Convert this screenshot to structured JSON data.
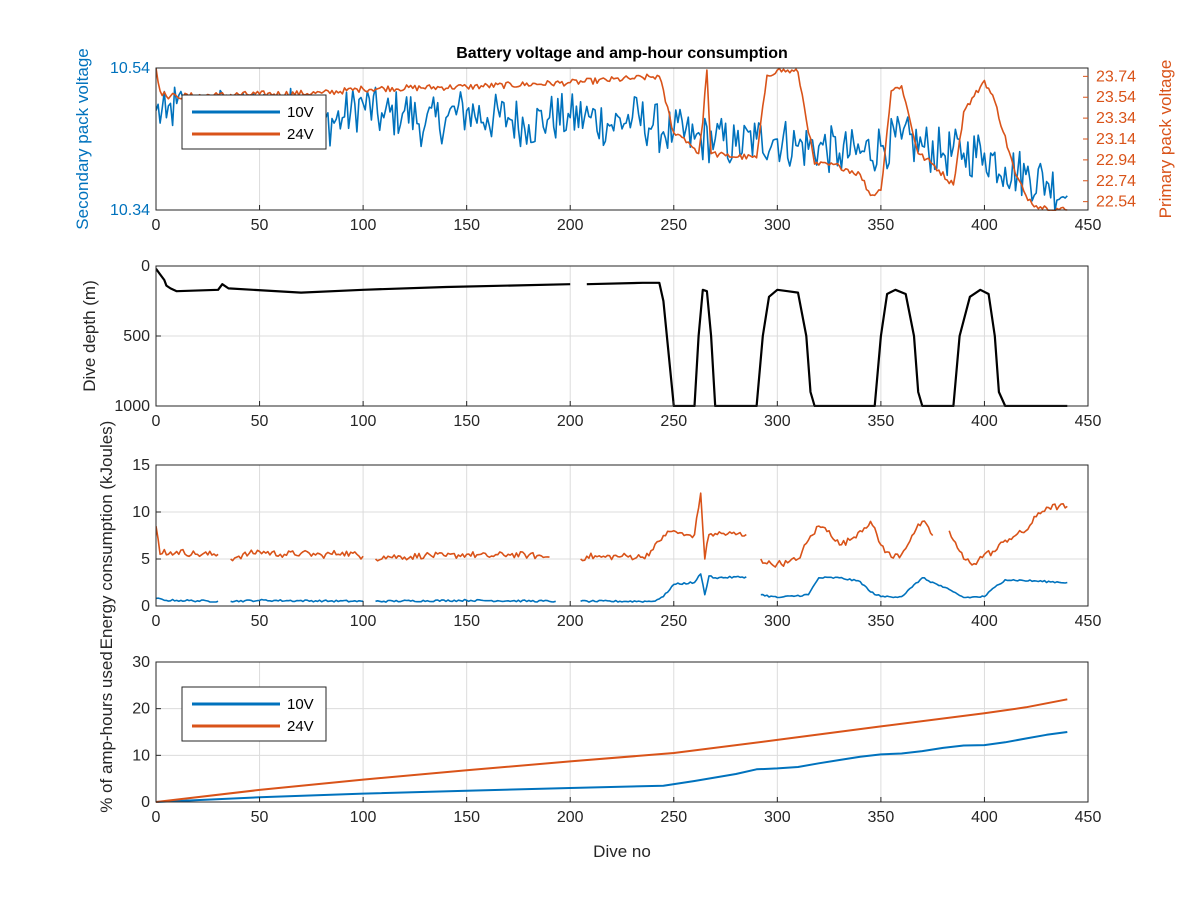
{
  "figure": {
    "background": "#ffffff"
  },
  "chart_data": [
    {
      "id": "voltage",
      "type": "line",
      "title": "Battery voltage and amp-hour consumption",
      "xlabel": "",
      "ylabel": "Secondary pack voltage",
      "y2label": "Primary pack voltage",
      "xlim": [
        0,
        450
      ],
      "xticks": [
        0,
        50,
        100,
        150,
        200,
        250,
        300,
        350,
        400,
        450
      ],
      "ylim": [
        10.34,
        10.54
      ],
      "yticks": [
        10.34,
        10.54
      ],
      "y2lim": [
        22.46,
        23.82
      ],
      "y2ticks": [
        22.54,
        22.74,
        22.94,
        23.14,
        23.34,
        23.54,
        23.74
      ],
      "grid": true,
      "legend": {
        "position": "top-left",
        "entries": [
          "10V",
          "24V"
        ]
      },
      "series": [
        {
          "name": "10V",
          "axis": "left",
          "color": "#0072bd",
          "x": [
            0,
            5,
            10,
            20,
            30,
            40,
            50,
            60,
            70,
            80,
            90,
            100,
            110,
            120,
            130,
            140,
            150,
            160,
            170,
            180,
            190,
            200,
            210,
            220,
            230,
            240,
            245,
            250,
            260,
            270,
            280,
            290,
            300,
            310,
            320,
            330,
            340,
            350,
            360,
            370,
            380,
            390,
            400,
            410,
            420,
            430,
            440
          ],
          "y": [
            10.48,
            10.47,
            10.49,
            10.46,
            10.48,
            10.47,
            10.48,
            10.47,
            10.49,
            10.46,
            10.47,
            10.49,
            10.47,
            10.48,
            10.46,
            10.47,
            10.48,
            10.47,
            10.47,
            10.46,
            10.47,
            10.47,
            10.47,
            10.46,
            10.47,
            10.46,
            10.45,
            10.45,
            10.44,
            10.44,
            10.43,
            10.44,
            10.44,
            10.43,
            10.43,
            10.42,
            10.42,
            10.43,
            10.44,
            10.43,
            10.42,
            10.42,
            10.42,
            10.4,
            10.39,
            10.38,
            10.36
          ],
          "noise": 0.035
        },
        {
          "name": "24V",
          "axis": "right",
          "color": "#d95319",
          "x": [
            0,
            2,
            5,
            10,
            30,
            50,
            80,
            100,
            150,
            200,
            230,
            243,
            250,
            255,
            260,
            262,
            264,
            266,
            268,
            275,
            290,
            295,
            300,
            310,
            318,
            330,
            340,
            345,
            350,
            355,
            360,
            368,
            375,
            385,
            390,
            395,
            400,
            405,
            415,
            420,
            425,
            430,
            440
          ],
          "y": [
            23.82,
            23.6,
            23.55,
            23.55,
            23.56,
            23.57,
            23.58,
            23.62,
            23.64,
            23.68,
            23.72,
            23.74,
            23.2,
            23.15,
            23.05,
            23.0,
            23.3,
            23.8,
            23.0,
            22.98,
            22.96,
            23.75,
            23.8,
            23.78,
            22.9,
            22.88,
            22.8,
            22.6,
            22.65,
            23.6,
            23.65,
            23.0,
            22.9,
            22.7,
            23.4,
            23.55,
            23.7,
            23.5,
            22.8,
            22.6,
            22.5,
            22.48,
            22.46
          ],
          "noise": 0.03
        }
      ]
    },
    {
      "id": "depth",
      "type": "line",
      "xlabel": "",
      "ylabel": "Dive depth (m)",
      "xlim": [
        0,
        450
      ],
      "xticks": [
        0,
        50,
        100,
        150,
        200,
        250,
        300,
        350,
        400,
        450
      ],
      "ylim": [
        0,
        1000
      ],
      "yticks": [
        0,
        500,
        1000
      ],
      "y_reversed": true,
      "grid": true,
      "series": [
        {
          "name": "",
          "color": "#000000",
          "x": [
            0,
            2,
            4,
            5,
            7,
            10,
            30,
            32,
            35,
            70,
            100,
            140,
            200,
            205,
            208,
            235,
            243,
            245,
            250,
            253,
            260,
            262,
            264,
            266,
            268,
            270,
            288,
            290,
            293,
            296,
            300,
            305,
            310,
            314,
            316,
            318,
            345,
            347,
            350,
            353,
            357,
            362,
            366,
            368,
            370,
            383,
            385,
            388,
            393,
            398,
            402,
            405,
            407,
            410,
            440
          ],
          "y": [
            20,
            60,
            100,
            140,
            160,
            180,
            170,
            130,
            160,
            190,
            170,
            150,
            130,
            null,
            130,
            120,
            120,
            250,
            1000,
            1000,
            1000,
            500,
            170,
            180,
            500,
            1000,
            1000,
            1000,
            500,
            220,
            170,
            180,
            190,
            500,
            900,
            1000,
            1000,
            1000,
            500,
            200,
            170,
            200,
            500,
            900,
            1000,
            1000,
            1000,
            500,
            220,
            170,
            200,
            500,
            900,
            1000,
            1000
          ]
        }
      ]
    },
    {
      "id": "energy",
      "type": "line",
      "xlabel": "",
      "ylabel": "Energy consumption (kJoules)",
      "xlim": [
        0,
        450
      ],
      "xticks": [
        0,
        50,
        100,
        150,
        200,
        250,
        300,
        350,
        400,
        450
      ],
      "ylim": [
        0,
        15
      ],
      "yticks": [
        0,
        5,
        10,
        15
      ],
      "grid": true,
      "series": [
        {
          "name": "24V",
          "color": "#d95319",
          "x": [
            0,
            2,
            4,
            6,
            10,
            20,
            30,
            33,
            36,
            40,
            50,
            60,
            70,
            80,
            90,
            100,
            103,
            106,
            110,
            120,
            130,
            140,
            150,
            160,
            170,
            180,
            190,
            193,
            200,
            205,
            208,
            215,
            225,
            235,
            240,
            245,
            250,
            255,
            260,
            263,
            265,
            267,
            270,
            285,
            288,
            292,
            295,
            300,
            305,
            310,
            315,
            320,
            325,
            330,
            335,
            340,
            345,
            350,
            355,
            360,
            365,
            370,
            375,
            378,
            383,
            385,
            390,
            395,
            400,
            405,
            410,
            415,
            420,
            425,
            430,
            440
          ],
          "y": [
            8.5,
            5.5,
            6.0,
            5.5,
            5.8,
            5.5,
            5.5,
            null,
            5.0,
            5.3,
            5.8,
            5.5,
            5.6,
            5.4,
            5.7,
            5.3,
            null,
            5.0,
            5.3,
            5.2,
            5.4,
            5.3,
            5.5,
            5.3,
            5.5,
            5.4,
            5.2,
            null,
            null,
            5.0,
            5.3,
            5.2,
            5.3,
            5.2,
            6.0,
            7.5,
            8.0,
            7.5,
            7.6,
            12.0,
            5.0,
            7.6,
            7.7,
            7.6,
            null,
            5.0,
            4.5,
            4.5,
            4.6,
            5.0,
            7.0,
            8.5,
            8.0,
            6.5,
            7.0,
            8.0,
            9.0,
            6.5,
            5.2,
            5.5,
            7.5,
            9.0,
            7.5,
            null,
            8.0,
            7.0,
            5.0,
            4.5,
            5.5,
            5.8,
            7.0,
            7.5,
            8.0,
            9.5,
            10.5,
            10.6
          ],
          "noise": 0.35
        },
        {
          "name": "10V",
          "color": "#0072bd",
          "x": [
            0,
            5,
            10,
            30,
            33,
            36,
            50,
            100,
            103,
            106,
            150,
            193,
            200,
            205,
            210,
            240,
            245,
            250,
            260,
            263,
            265,
            267,
            270,
            285,
            288,
            292,
            300,
            315,
            320,
            330,
            340,
            345,
            350,
            360,
            365,
            370,
            380,
            385,
            390,
            400,
            405,
            410,
            440
          ],
          "y": [
            0.8,
            0.6,
            0.6,
            0.5,
            null,
            0.5,
            0.6,
            0.5,
            null,
            0.5,
            0.6,
            0.5,
            null,
            0.5,
            0.5,
            0.5,
            1.0,
            2.3,
            2.5,
            3.4,
            1.2,
            3.2,
            3.0,
            3.1,
            null,
            1.2,
            0.9,
            1.2,
            3.0,
            3.0,
            2.6,
            1.5,
            1.0,
            1.0,
            2.0,
            3.0,
            2.0,
            1.5,
            0.9,
            1.0,
            2.0,
            2.8,
            2.5
          ],
          "noise": 0.1
        }
      ]
    },
    {
      "id": "amphours",
      "type": "line",
      "xlabel": "Dive no",
      "ylabel": "% of amp-hours used",
      "xlim": [
        0,
        450
      ],
      "xticks": [
        0,
        50,
        100,
        150,
        200,
        250,
        300,
        350,
        400,
        450
      ],
      "ylim": [
        0,
        30
      ],
      "yticks": [
        0,
        10,
        20,
        30
      ],
      "grid": true,
      "legend": {
        "position": "top-left",
        "entries": [
          "10V",
          "24V"
        ]
      },
      "series": [
        {
          "name": "10V",
          "color": "#0072bd",
          "x": [
            0,
            50,
            100,
            150,
            200,
            245,
            260,
            280,
            290,
            300,
            310,
            320,
            330,
            340,
            350,
            360,
            370,
            380,
            390,
            400,
            410,
            420,
            430,
            440
          ],
          "y": [
            0,
            1.0,
            1.8,
            2.4,
            3.0,
            3.5,
            4.5,
            6.0,
            7.0,
            7.2,
            7.5,
            8.3,
            9.0,
            9.7,
            10.2,
            10.4,
            10.9,
            11.6,
            12.1,
            12.2,
            12.8,
            13.6,
            14.4,
            15.0
          ]
        },
        {
          "name": "24V",
          "color": "#d95319",
          "x": [
            0,
            50,
            100,
            150,
            200,
            250,
            300,
            350,
            400,
            420,
            440
          ],
          "y": [
            0,
            2.6,
            4.8,
            6.8,
            8.7,
            10.5,
            13.3,
            16.2,
            19.0,
            20.3,
            22.0
          ]
        }
      ]
    }
  ]
}
